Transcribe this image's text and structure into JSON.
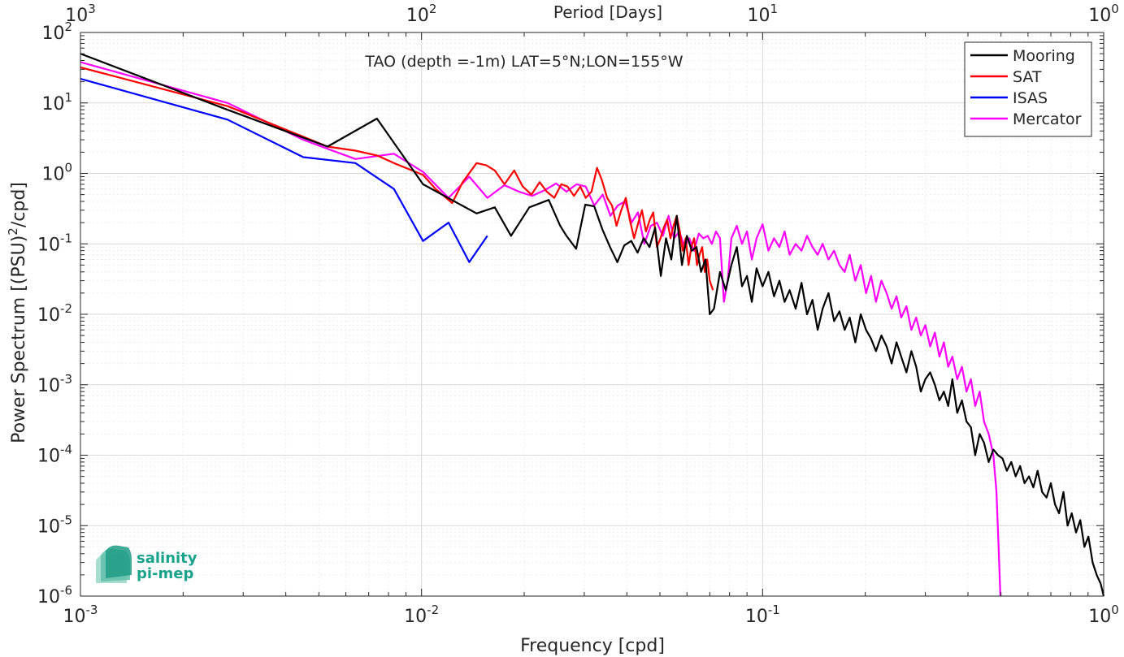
{
  "chart_data": {
    "type": "line",
    "title": "TAO (depth =-1m) LAT=5°N;LON=155°W",
    "xlabel": "Frequency [cpd]",
    "ylabel": "Power Spectrum [(PSU)²/cpd]",
    "top_xlabel": "Period [Days]",
    "xscale": "log",
    "yscale": "log",
    "xlim": [
      0.001,
      1
    ],
    "ylim": [
      1e-06,
      100
    ],
    "grid": true,
    "legend_position": "top-right",
    "x_ticks": [
      {
        "value": 0.001,
        "base": "10",
        "exp": "-3"
      },
      {
        "value": 0.01,
        "base": "10",
        "exp": "-2"
      },
      {
        "value": 0.1,
        "base": "10",
        "exp": "-1"
      },
      {
        "value": 1,
        "base": "10",
        "exp": "0"
      }
    ],
    "y_ticks": [
      {
        "value": 1e-06,
        "base": "10",
        "exp": "-6"
      },
      {
        "value": 1e-05,
        "base": "10",
        "exp": "-5"
      },
      {
        "value": 0.0001,
        "base": "10",
        "exp": "-4"
      },
      {
        "value": 0.001,
        "base": "10",
        "exp": "-3"
      },
      {
        "value": 0.01,
        "base": "10",
        "exp": "-2"
      },
      {
        "value": 0.1,
        "base": "10",
        "exp": "-1"
      },
      {
        "value": 1,
        "base": "10",
        "exp": "0"
      },
      {
        "value": 10,
        "base": "10",
        "exp": "1"
      },
      {
        "value": 100,
        "base": "10",
        "exp": "2"
      }
    ],
    "top_ticks": [
      {
        "value": 0.001,
        "base": "10",
        "exp": "3"
      },
      {
        "value": 0.01,
        "base": "10",
        "exp": "2"
      },
      {
        "value": 0.1,
        "base": "10",
        "exp": "1"
      },
      {
        "value": 1,
        "base": "10",
        "exp": "0"
      }
    ],
    "series": [
      {
        "name": "Mooring",
        "color": "#000000",
        "x": [
          0.001,
          0.0027,
          0.0053,
          0.0074,
          0.0101,
          0.0145,
          0.0164,
          0.0183,
          0.0207,
          0.0236,
          0.0255,
          0.0266,
          0.0284,
          0.0302,
          0.0321,
          0.0339,
          0.0357,
          0.0375,
          0.0393,
          0.0412,
          0.043,
          0.0448,
          0.0466,
          0.0484,
          0.0503,
          0.0521,
          0.054,
          0.056,
          0.058,
          0.06,
          0.062,
          0.064,
          0.066,
          0.068,
          0.07,
          0.072,
          0.075,
          0.078,
          0.081,
          0.084,
          0.087,
          0.09,
          0.093,
          0.096,
          0.1,
          0.104,
          0.108,
          0.112,
          0.116,
          0.12,
          0.125,
          0.13,
          0.135,
          0.14,
          0.145,
          0.15,
          0.156,
          0.162,
          0.168,
          0.174,
          0.18,
          0.187,
          0.194,
          0.201,
          0.208,
          0.215,
          0.223,
          0.231,
          0.239,
          0.247,
          0.255,
          0.264,
          0.273,
          0.282,
          0.291,
          0.3,
          0.31,
          0.32,
          0.33,
          0.34,
          0.35,
          0.36,
          0.372,
          0.384,
          0.396,
          0.408,
          0.42,
          0.433,
          0.446,
          0.46,
          0.475,
          0.49,
          0.505,
          0.52,
          0.536,
          0.552,
          0.569,
          0.586,
          0.604,
          0.622,
          0.64,
          0.66,
          0.68,
          0.7,
          0.72,
          0.74,
          0.762,
          0.784,
          0.806,
          0.83,
          0.854,
          0.878,
          0.902,
          0.928,
          0.954,
          0.98,
          1.0
        ],
        "values": [
          50,
          8,
          2.4,
          6,
          0.7,
          0.27,
          0.33,
          0.13,
          0.33,
          0.42,
          0.18,
          0.13,
          0.085,
          0.36,
          0.34,
          0.16,
          0.09,
          0.055,
          0.095,
          0.11,
          0.075,
          0.12,
          0.09,
          0.17,
          0.035,
          0.12,
          0.06,
          0.25,
          0.05,
          0.13,
          0.08,
          0.09,
          0.04,
          0.06,
          0.01,
          0.012,
          0.04,
          0.022,
          0.05,
          0.09,
          0.025,
          0.035,
          0.015,
          0.045,
          0.025,
          0.04,
          0.018,
          0.03,
          0.015,
          0.022,
          0.012,
          0.028,
          0.01,
          0.016,
          0.006,
          0.012,
          0.02,
          0.008,
          0.011,
          0.006,
          0.009,
          0.004,
          0.01,
          0.006,
          0.0045,
          0.003,
          0.005,
          0.0035,
          0.002,
          0.004,
          0.0025,
          0.0015,
          0.003,
          0.0018,
          0.0008,
          0.0012,
          0.0015,
          0.001,
          0.0006,
          0.0008,
          0.0005,
          0.0012,
          0.0004,
          0.0006,
          0.0003,
          0.00025,
          0.0001,
          0.0002,
          0.00015,
          8e-05,
          0.00012,
          0.0001,
          9e-05,
          6e-05,
          8e-05,
          5e-05,
          7e-05,
          4e-05,
          5e-05,
          3.5e-05,
          6e-05,
          3e-05,
          2.5e-05,
          4e-05,
          2e-05,
          1.5e-05,
          3e-05,
          1e-05,
          1.5e-05,
          8e-06,
          1.2e-05,
          5e-06,
          7e-06,
          3e-06,
          2e-06,
          1.5e-06,
          1e-06
        ]
      },
      {
        "name": "SAT",
        "color": "#ff0000",
        "x": [
          0.001,
          0.0027,
          0.0053,
          0.0064,
          0.0074,
          0.0083,
          0.0101,
          0.011,
          0.0123,
          0.0132,
          0.0145,
          0.0155,
          0.0164,
          0.0175,
          0.0187,
          0.0198,
          0.021,
          0.0222,
          0.0233,
          0.0245,
          0.0257,
          0.0268,
          0.028,
          0.0292,
          0.0303,
          0.0315,
          0.0327,
          0.0338,
          0.035,
          0.0362,
          0.0373,
          0.0385,
          0.0397,
          0.0408,
          0.042,
          0.0432,
          0.0443,
          0.0455,
          0.0467,
          0.0478,
          0.049,
          0.0502,
          0.0513,
          0.0525,
          0.0537,
          0.0548,
          0.056,
          0.0572,
          0.0583,
          0.0595,
          0.0607,
          0.0618,
          0.063,
          0.0642,
          0.0653,
          0.0665,
          0.0677,
          0.0688,
          0.07,
          0.0715
        ],
        "values": [
          32,
          9,
          2.4,
          2.1,
          1.8,
          1.4,
          0.95,
          0.6,
          0.38,
          0.75,
          1.4,
          1.3,
          1.1,
          0.7,
          1.1,
          0.65,
          0.5,
          0.75,
          0.55,
          0.45,
          0.7,
          0.65,
          0.48,
          0.65,
          0.45,
          0.55,
          1.2,
          0.8,
          0.45,
          0.35,
          0.18,
          0.3,
          0.45,
          0.22,
          0.12,
          0.2,
          0.3,
          0.15,
          0.22,
          0.28,
          0.09,
          0.12,
          0.17,
          0.22,
          0.12,
          0.18,
          0.25,
          0.15,
          0.08,
          0.12,
          0.05,
          0.09,
          0.12,
          0.05,
          0.07,
          0.09,
          0.04,
          0.06,
          0.03,
          0.022
        ]
      },
      {
        "name": "ISAS",
        "color": "#0000ff",
        "x": [
          0.001,
          0.0027,
          0.0045,
          0.0064,
          0.0083,
          0.0101,
          0.012,
          0.0138,
          0.0156
        ],
        "values": [
          22,
          5.8,
          1.7,
          1.4,
          0.6,
          0.11,
          0.2,
          0.055,
          0.13
        ]
      },
      {
        "name": "Mercator",
        "color": "#ff00ff",
        "x": [
          0.001,
          0.0027,
          0.0045,
          0.0064,
          0.0083,
          0.0101,
          0.012,
          0.0138,
          0.0156,
          0.0175,
          0.0193,
          0.0211,
          0.023,
          0.0248,
          0.0266,
          0.0285,
          0.0303,
          0.0321,
          0.034,
          0.0358,
          0.0376,
          0.0395,
          0.0413,
          0.0431,
          0.045,
          0.047,
          0.049,
          0.051,
          0.053,
          0.055,
          0.057,
          0.059,
          0.061,
          0.063,
          0.065,
          0.067,
          0.069,
          0.071,
          0.073,
          0.075,
          0.077,
          0.079,
          0.081,
          0.084,
          0.087,
          0.09,
          0.093,
          0.096,
          0.1,
          0.104,
          0.108,
          0.112,
          0.116,
          0.12,
          0.125,
          0.13,
          0.135,
          0.14,
          0.145,
          0.15,
          0.156,
          0.162,
          0.168,
          0.174,
          0.18,
          0.187,
          0.194,
          0.201,
          0.208,
          0.215,
          0.223,
          0.231,
          0.239,
          0.247,
          0.255,
          0.264,
          0.273,
          0.282,
          0.291,
          0.3,
          0.31,
          0.32,
          0.33,
          0.34,
          0.35,
          0.36,
          0.372,
          0.384,
          0.396,
          0.408,
          0.42,
          0.433,
          0.446,
          0.46,
          0.475,
          0.485,
          0.492,
          0.498
        ],
        "values": [
          38,
          10,
          3,
          1.6,
          1.9,
          1.05,
          0.45,
          0.9,
          0.45,
          0.68,
          0.55,
          0.48,
          0.58,
          0.72,
          0.55,
          0.7,
          0.65,
          0.35,
          0.5,
          0.25,
          0.35,
          0.4,
          0.2,
          0.28,
          0.1,
          0.18,
          0.2,
          0.13,
          0.25,
          0.12,
          0.15,
          0.09,
          0.12,
          0.08,
          0.14,
          0.12,
          0.13,
          0.1,
          0.15,
          0.12,
          0.015,
          0.03,
          0.12,
          0.18,
          0.1,
          0.15,
          0.06,
          0.12,
          0.19,
          0.08,
          0.12,
          0.09,
          0.15,
          0.07,
          0.1,
          0.08,
          0.13,
          0.09,
          0.07,
          0.1,
          0.06,
          0.08,
          0.05,
          0.04,
          0.07,
          0.03,
          0.05,
          0.02,
          0.035,
          0.015,
          0.03,
          0.02,
          0.012,
          0.018,
          0.009,
          0.013,
          0.006,
          0.009,
          0.005,
          0.007,
          0.0035,
          0.0055,
          0.0025,
          0.004,
          0.0018,
          0.0025,
          0.0012,
          0.0018,
          0.0008,
          0.0012,
          0.0005,
          0.0008,
          0.0003,
          0.0002,
          0.0001,
          3e-05,
          5e-06,
          1e-06
        ]
      }
    ]
  },
  "logo": {
    "line1": "salinity",
    "line2": "pi-mep"
  }
}
